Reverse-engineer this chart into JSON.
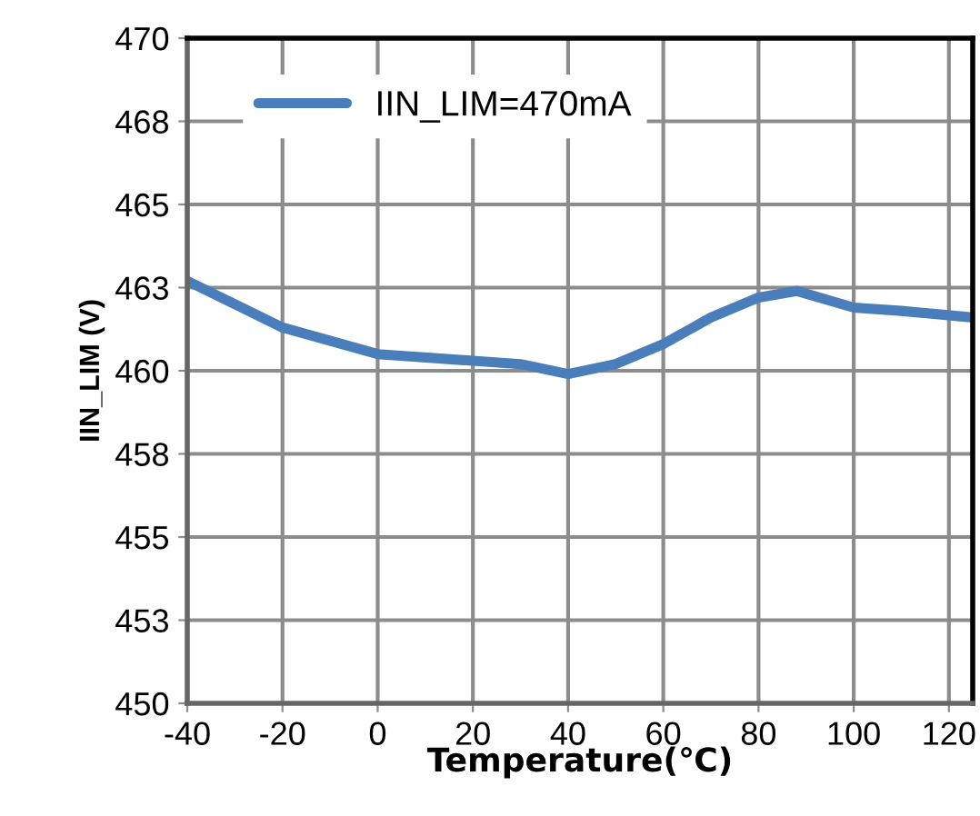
{
  "chart_data": {
    "type": "line",
    "xlabel": "Temperature(℃)",
    "ylabel": "IIN_LIM (V)",
    "x": [
      -40,
      -20,
      0,
      20,
      30,
      40,
      50,
      60,
      70,
      80,
      88,
      100,
      110,
      125
    ],
    "series": [
      {
        "name": "IIN_LIM=470mA",
        "color": "#4a7ebb",
        "values": [
          462.7,
          461.3,
          460.5,
          460.3,
          460.2,
          459.9,
          460.2,
          460.8,
          461.6,
          462.2,
          462.4,
          461.9,
          461.8,
          461.6
        ]
      }
    ],
    "xlim": [
      -40,
      125
    ],
    "xticks": [
      -40,
      -20,
      0,
      20,
      40,
      60,
      80,
      100,
      120
    ],
    "ylim": [
      450,
      470
    ],
    "yticks": [
      450,
      {
        "value": 452.5,
        "label": "453"
      },
      455,
      {
        "value": 457.5,
        "label": "458"
      },
      460,
      {
        "value": 462.5,
        "label": "463"
      },
      465,
      {
        "value": 467.5,
        "label": "468"
      },
      470
    ],
    "grid": true,
    "legend": "top left",
    "marker": "none",
    "line_style": "solid"
  }
}
